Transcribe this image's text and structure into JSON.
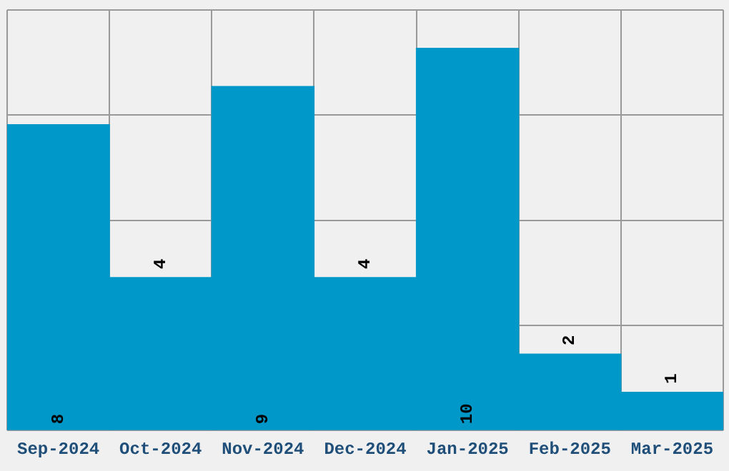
{
  "chart_data": {
    "type": "bar",
    "categories": [
      "Sep-2024",
      "Oct-2024",
      "Nov-2024",
      "Dec-2024",
      "Jan-2025",
      "Feb-2025",
      "Mar-2025"
    ],
    "values": [
      8,
      4,
      9,
      4,
      10,
      2,
      1
    ],
    "color": "#0098c8",
    "data_labels": true,
    "grid": true,
    "tick_labels": "x",
    "ylim": [
      0,
      11
    ],
    "yticks": [
      {
        "value": 0,
        "label": null
      },
      {
        "value": 2.75,
        "label": null
      },
      {
        "value": 5.5,
        "label": null
      },
      {
        "value": 8.25,
        "label": null
      },
      {
        "value": 11,
        "label": null
      }
    ]
  }
}
